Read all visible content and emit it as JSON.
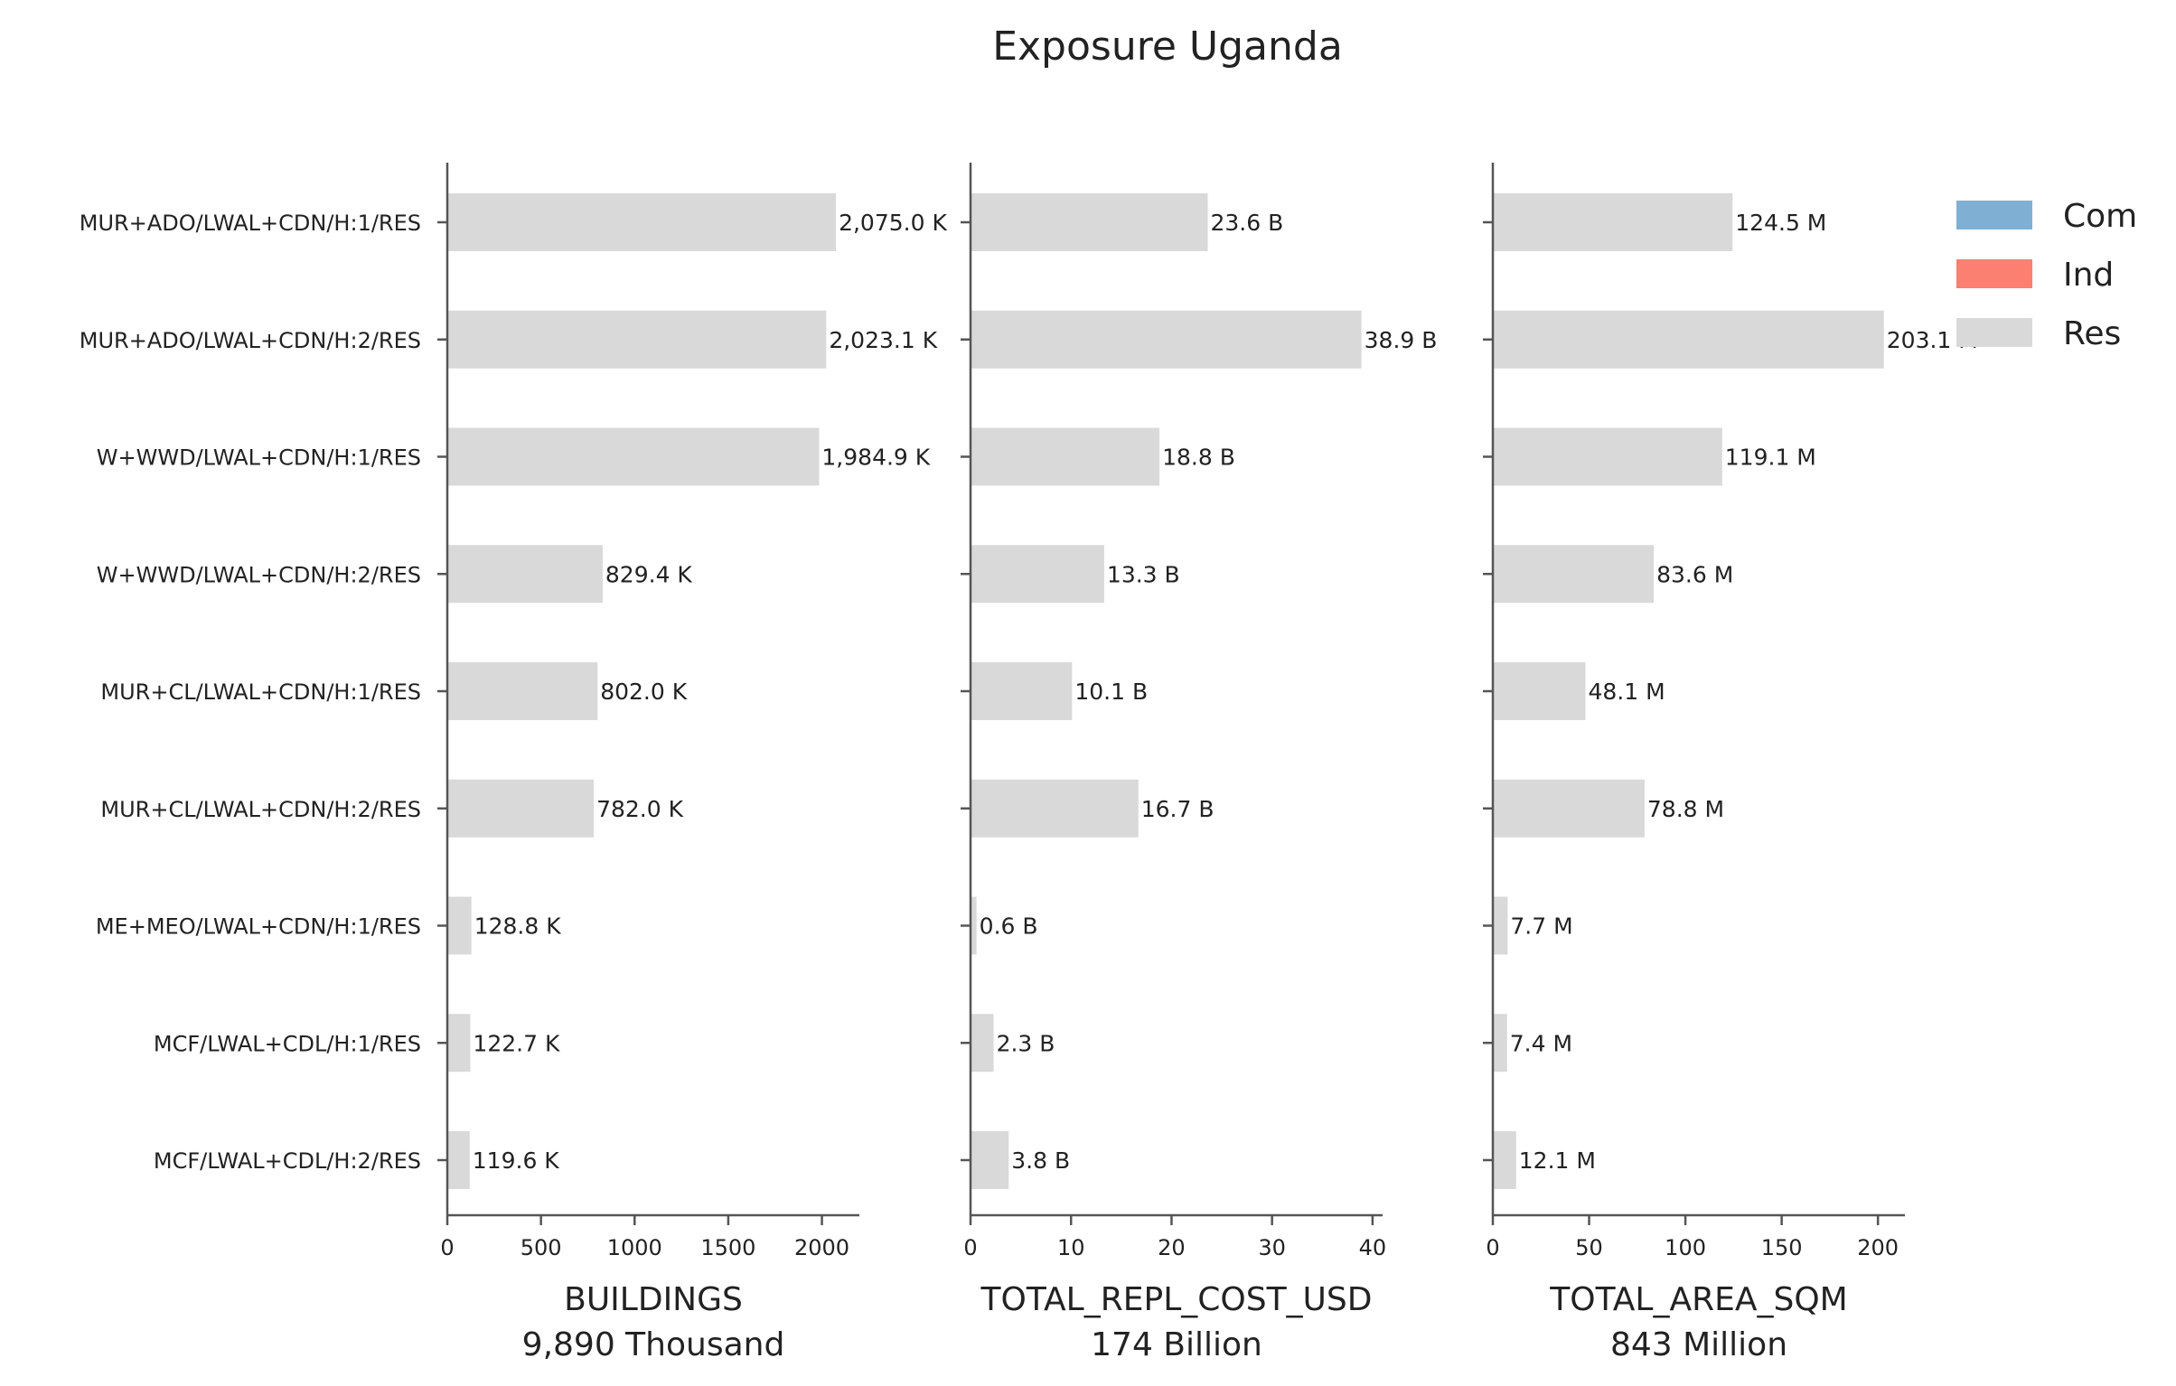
{
  "chart_data": {
    "type": "bar",
    "orientation": "horizontal",
    "stacked": true,
    "title": "Exposure Uganda",
    "categories": [
      "MUR+ADO/LWAL+CDN/H:1/RES",
      "MUR+ADO/LWAL+CDN/H:2/RES",
      "W+WWD/LWAL+CDN/H:1/RES",
      "W+WWD/LWAL+CDN/H:2/RES",
      "MUR+CL/LWAL+CDN/H:1/RES",
      "MUR+CL/LWAL+CDN/H:2/RES",
      "ME+MEO/LWAL+CDN/H:1/RES",
      "MCF/LWAL+CDL/H:1/RES",
      "MCF/LWAL+CDL/H:2/RES"
    ],
    "legend": {
      "position": "top-right",
      "entries": [
        {
          "name": "Com",
          "color": "#7fb0d4"
        },
        {
          "name": "Ind",
          "color": "#fb8072"
        },
        {
          "name": "Res",
          "color": "#d9d9d9"
        }
      ]
    },
    "grid": false,
    "panels": [
      {
        "xlabel": "BUILDINGS",
        "total_label": "9,890 Thousand",
        "xlim": [
          0,
          2200
        ],
        "xticks": [
          0,
          500,
          1000,
          1500,
          2000
        ],
        "series": [
          {
            "name": "Res",
            "values": [
              2075.0,
              2023.1,
              1984.9,
              829.4,
              802.0,
              782.0,
              128.8,
              122.7,
              119.6
            ]
          }
        ],
        "value_labels": [
          "2,075.0 K",
          "2,023.1 K",
          "1,984.9 K",
          "829.4 K",
          "802.0 K",
          "782.0 K",
          "128.8 K",
          "122.7 K",
          "119.6 K"
        ]
      },
      {
        "xlabel": "TOTAL_REPL_COST_USD",
        "total_label": "174 Billion",
        "xlim": [
          0,
          41
        ],
        "xticks": [
          0,
          10,
          20,
          30,
          40
        ],
        "series": [
          {
            "name": "Res",
            "values": [
              23.6,
              38.9,
              18.8,
              13.3,
              10.1,
              16.7,
              0.6,
              2.3,
              3.8
            ]
          }
        ],
        "value_labels": [
          "23.6 B",
          "38.9 B",
          "18.8 B",
          "13.3 B",
          "10.1 B",
          "16.7 B",
          "0.6 B",
          "2.3 B",
          "3.8 B"
        ]
      },
      {
        "xlabel": "TOTAL_AREA_SQM",
        "total_label": "843 Million",
        "xlim": [
          0,
          214
        ],
        "xticks": [
          0,
          50,
          100,
          150,
          200
        ],
        "series": [
          {
            "name": "Res",
            "values": [
              124.5,
              203.1,
              119.1,
              83.6,
              48.1,
              78.8,
              7.7,
              7.4,
              12.1
            ]
          }
        ],
        "value_labels": [
          "124.5 M",
          "203.1 M",
          "119.1 M",
          "83.6 M",
          "48.1 M",
          "78.8 M",
          "7.7 M",
          "7.4 M",
          "12.1 M"
        ]
      }
    ]
  }
}
